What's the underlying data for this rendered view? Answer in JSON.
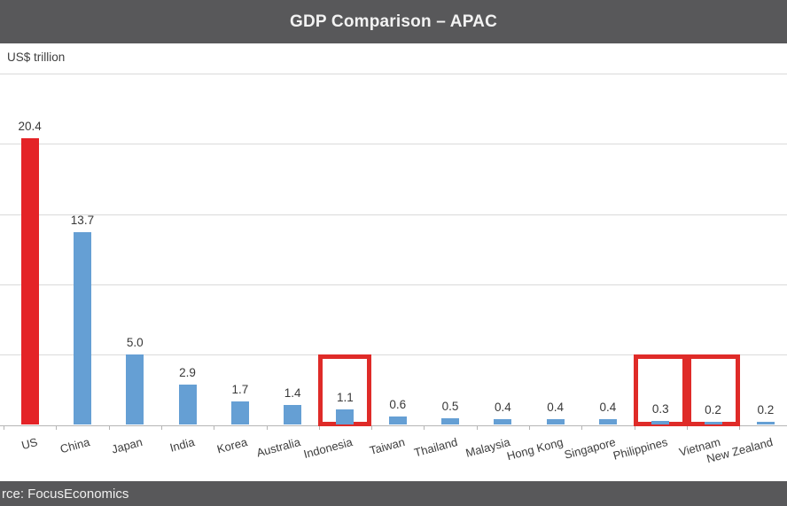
{
  "header": {
    "title": "GDP Comparison – APAC"
  },
  "axis": {
    "unit_label": "US$ trillion"
  },
  "footer": {
    "source_text": "rce: FocusEconomics"
  },
  "chart_data": {
    "type": "bar",
    "title": "GDP Comparison – APAC",
    "ylabel": "US$ trillion",
    "xlabel": "",
    "categories": [
      "US",
      "China",
      "Japan",
      "India",
      "Korea",
      "Australia",
      "Indonesia",
      "Taiwan",
      "Thailand",
      "Malaysia",
      "Hong Kong",
      "Singapore",
      "Philippines",
      "Vietnam",
      "New Zealand"
    ],
    "values": [
      20.4,
      13.7,
      5.0,
      2.9,
      1.7,
      1.4,
      1.1,
      0.6,
      0.5,
      0.4,
      0.4,
      0.4,
      0.3,
      0.2,
      0.2
    ],
    "value_labels": [
      "20.4",
      "13.7",
      "5.0",
      "2.9",
      "1.7",
      "1.4",
      "1.1",
      "0.6",
      "0.5",
      "0.4",
      "0.4",
      "0.4",
      "0.3",
      "0.2",
      "0.2"
    ],
    "highlighted_category": "US",
    "boxed_categories": [
      "Indonesia",
      "Philippines",
      "Vietnam"
    ],
    "ylim": [
      0,
      25
    ],
    "gridline_step": 5,
    "grid": true,
    "legend": false,
    "colors": {
      "bar": "#659fd4",
      "highlight_bar": "#e42327",
      "box_border": "#df2b28",
      "band_background": "#58585a",
      "gridline": "#dadada"
    }
  }
}
